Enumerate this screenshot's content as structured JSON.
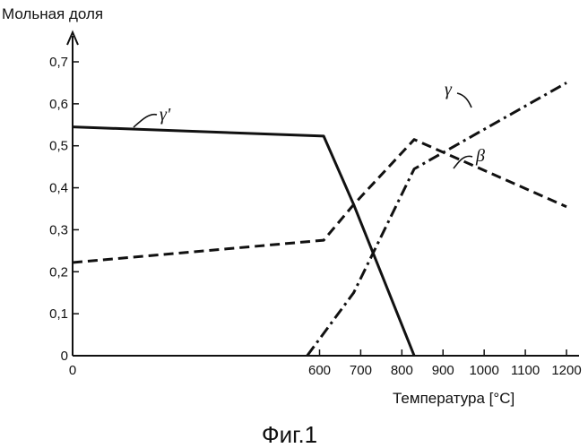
{
  "chart_data": {
    "type": "line",
    "ylabel": "Мольная доля",
    "xlabel": "Температура [°C]",
    "caption": "Фиг.1",
    "xlim": [
      0,
      1200
    ],
    "ylim": [
      0,
      0.7
    ],
    "xticks": [
      {
        "value": 0,
        "label": "0"
      },
      {
        "value": 600,
        "label": "600"
      },
      {
        "value": 700,
        "label": "700"
      },
      {
        "value": 800,
        "label": "800"
      },
      {
        "value": 900,
        "label": "900"
      },
      {
        "value": 1000,
        "label": "1000"
      },
      {
        "value": 1100,
        "label": "1100"
      },
      {
        "value": 1200,
        "label": "1200"
      }
    ],
    "yticks": [
      {
        "value": 0,
        "label": "0"
      },
      {
        "value": 0.1,
        "label": "0,1"
      },
      {
        "value": 0.2,
        "label": "0,2"
      },
      {
        "value": 0.3,
        "label": "0,3"
      },
      {
        "value": 0.4,
        "label": "0,4"
      },
      {
        "value": 0.5,
        "label": "0,5"
      },
      {
        "value": 0.6,
        "label": "0,6"
      },
      {
        "value": 0.7,
        "label": "0,7"
      }
    ],
    "series": [
      {
        "name": "γ'",
        "style": "solid",
        "points": [
          [
            0,
            0.545
          ],
          [
            610,
            0.523
          ],
          [
            683,
            0.36
          ],
          [
            830,
            0
          ]
        ]
      },
      {
        "name": "β",
        "style": "dashed",
        "points": [
          [
            0,
            0.222
          ],
          [
            610,
            0.275
          ],
          [
            683,
            0.36
          ],
          [
            830,
            0.515
          ],
          [
            1200,
            0.355
          ]
        ]
      },
      {
        "name": "γ",
        "style": "dashdot",
        "points": [
          [
            570,
            0
          ],
          [
            683,
            0.15
          ],
          [
            830,
            0.445
          ],
          [
            1200,
            0.65
          ]
        ]
      }
    ],
    "grid": false
  }
}
